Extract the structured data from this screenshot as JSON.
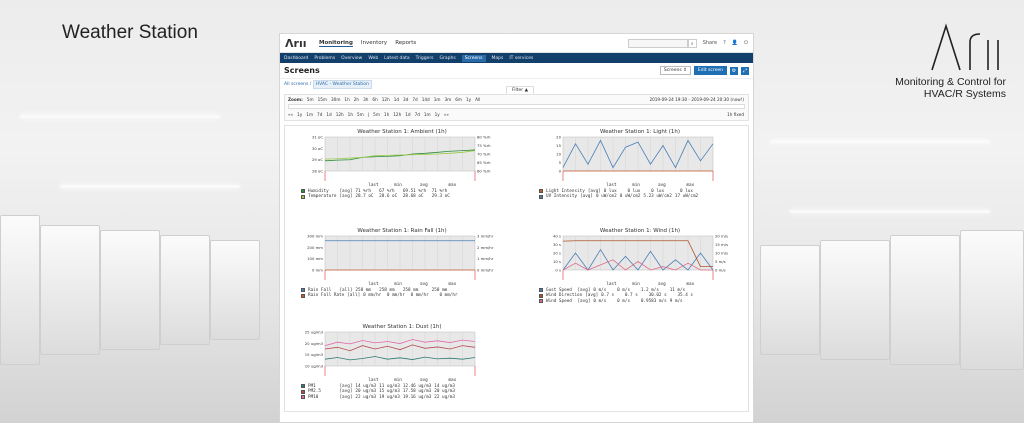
{
  "slide": {
    "title": "Weather Station",
    "brand_tagline_1": "Monitoring & Control for",
    "brand_tagline_2": "HVAC/R Systems"
  },
  "topnav": [
    "Monitoring",
    "Inventory",
    "Reports"
  ],
  "topright": {
    "share": "Share",
    "help": "?",
    "user": "👤",
    "power": "⏻"
  },
  "subnav": [
    "Dashboard",
    "Problems",
    "Overview",
    "Web",
    "Latest data",
    "Triggers",
    "Graphs",
    "Screens",
    "Maps",
    "IT services"
  ],
  "subnav_active": "Screens",
  "page": {
    "title": "Screens",
    "select": "Screens",
    "edit": "Edit screen"
  },
  "crumbs": {
    "root": "All screens",
    "current": "HVAC - Weather Station"
  },
  "filter": {
    "label": "Filter ▲",
    "zoom": [
      "Zoom:",
      "5m",
      "15m",
      "30m",
      "1h",
      "2h",
      "3h",
      "6h",
      "12h",
      "1d",
      "3d",
      "7d",
      "14d",
      "1m",
      "3m",
      "6m",
      "1y",
      "All"
    ],
    "range": "2019-09-24 19:30 - 2019-09-24 20:30 (now!)",
    "nav": [
      "««",
      "1y",
      "1m",
      "7d",
      "1d",
      "12h",
      "1h",
      "5m",
      "|",
      "5m",
      "1h",
      "12h",
      "1d",
      "7d",
      "1m",
      "1y",
      "»»"
    ],
    "fixed": "1h fixed"
  },
  "graphs": [
    {
      "title": "Weather Station 1: Ambient (1h)",
      "yl": [
        "31 oC",
        "30 oC",
        "29 oC",
        "28 oC"
      ],
      "yr": [
        "80 %rh",
        "75 %rh",
        "70 %rh",
        "65 %rh",
        "60 %rh"
      ],
      "series": [
        {
          "name": "Humidity",
          "color": "#2d8c3a",
          "fn": "[avg]",
          "last": "71 %rh",
          "min": "67 %rh",
          "avg": "69.51 %rh",
          "max": "71 %rh",
          "values": [
            0.3,
            0.32,
            0.33,
            0.4,
            0.42,
            0.43,
            0.45,
            0.5,
            0.52,
            0.55,
            0.58,
            0.6,
            0.62
          ]
        },
        {
          "name": "Temperature",
          "color": "#9aca48",
          "fn": "[avg]",
          "last": "28.7 oC",
          "min": "28.6 oC",
          "avg": "28.68 oC",
          "max": "29.3 oC",
          "values": [
            0.35,
            0.36,
            0.38,
            0.4,
            0.45,
            0.46,
            0.47,
            0.48,
            0.49,
            0.5,
            0.52,
            0.55,
            0.6
          ]
        }
      ]
    },
    {
      "title": "Weather Station 1: Light (1h)",
      "yl": [
        "20",
        "15",
        "10",
        "5",
        "0"
      ],
      "yr": [],
      "series": [
        {
          "name": "Light Intensity",
          "color": "#c85a2c",
          "fn": "[avg]",
          "last": "0 lux",
          "min": "0 lux",
          "avg": "0 lux",
          "max": "0 lux",
          "values": [
            0,
            0,
            0,
            0,
            0,
            0,
            0,
            0,
            0,
            0,
            0,
            0,
            0
          ]
        },
        {
          "name": "UV Intensity",
          "color": "#4a7fb5",
          "fn": "[avg]",
          "last": "0 uW/cm2",
          "min": "0 uW/cm2",
          "avg": "5.23 uW/cm2",
          "max": "17 uW/cm2",
          "values": [
            0.1,
            0.8,
            0.2,
            0.9,
            0.1,
            0.7,
            0.85,
            0.2,
            0.75,
            0.1,
            0.9,
            0.3,
            0.8
          ]
        }
      ]
    },
    {
      "title": "Weather Station 1: Rain Fall (1h)",
      "yl": [
        "300 mm",
        "200 mm",
        "100 mm",
        "0 mm"
      ],
      "yr": [
        "3 mm/hr",
        "2 mm/hr",
        "1 mm/hr",
        "0 mm/hr"
      ],
      "series": [
        {
          "name": "Rain Fall",
          "color": "#4a7fb5",
          "fn": "[all]",
          "last": "258 mm",
          "min": "258 mm",
          "avg": "258 mm",
          "max": "258 mm",
          "values": [
            0.86,
            0.86,
            0.86,
            0.86,
            0.86,
            0.86,
            0.86,
            0.86,
            0.86,
            0.86,
            0.86,
            0.86,
            0.86
          ]
        },
        {
          "name": "Rain Fall Rate",
          "color": "#c85a2c",
          "fn": "[all]",
          "last": "0 mm/hr",
          "min": "0 mm/hr",
          "avg": "0 mm/hr",
          "max": "0 mm/hr",
          "values": [
            0,
            0,
            0,
            0,
            0,
            0,
            0,
            0,
            0,
            0,
            0,
            0,
            0
          ]
        }
      ]
    },
    {
      "title": "Weather Station 1: Wind (1h)",
      "yl": [
        "40 s",
        "30 s",
        "20 s",
        "10 s",
        "0 s"
      ],
      "yr": [
        "20 m/s",
        "15 m/s",
        "10 m/s",
        "5 m/s",
        "0 m/s"
      ],
      "series": [
        {
          "name": "Gust Speed",
          "color": "#4a7fb5",
          "fn": "[avg]",
          "last": "0 m/s",
          "min": "0 m/s",
          "avg": "1.2 m/s",
          "max": "11 m/s",
          "values": [
            0,
            0.5,
            0,
            0.6,
            0,
            0.4,
            0,
            0.55,
            0,
            0.3,
            0,
            0.5,
            0
          ]
        },
        {
          "name": "Wind Direction",
          "color": "#b0532b",
          "fn": "[avg]",
          "last": "0.7 s",
          "min": "0.7 s",
          "avg": "30.02 s",
          "max": "35.4 s",
          "values": [
            0.85,
            0.86,
            0.86,
            0.86,
            0.86,
            0.86,
            0.86,
            0.86,
            0.86,
            0.86,
            0.86,
            0.1,
            0.1
          ]
        },
        {
          "name": "Wind Speed",
          "color": "#e06a8a",
          "fn": "[avg]",
          "last": "0 m/s",
          "min": "0 m/s",
          "avg": "0.9583 m/s",
          "max": "9 m/s",
          "values": [
            0,
            0.2,
            0,
            0.15,
            0.3,
            0,
            0.25,
            0,
            0.1,
            0,
            0.2,
            0,
            0
          ]
        }
      ]
    },
    {
      "title": "Weather Station 1: Dust (1h)",
      "yl": [
        "25 ug/m3",
        "20 ug/m3",
        "15 ug/m3",
        "10 ug/m3"
      ],
      "yr": [],
      "series": [
        {
          "name": "PM1",
          "color": "#2d7a72",
          "fn": "[avg]",
          "last": "14 ug/m3",
          "min": "11 ug/m3",
          "avg": "12.46 ug/m3",
          "max": "14 ug/m3",
          "values": [
            0.2,
            0.25,
            0.18,
            0.22,
            0.28,
            0.2,
            0.24,
            0.19,
            0.26,
            0.21,
            0.23,
            0.2,
            0.25
          ]
        },
        {
          "name": "PM2.5",
          "color": "#b34a52",
          "fn": "[avg]",
          "last": "20 ug/m3",
          "min": "15 ug/m3",
          "avg": "17.58 ug/m3",
          "max": "20 ug/m3",
          "values": [
            0.5,
            0.55,
            0.45,
            0.6,
            0.5,
            0.58,
            0.48,
            0.62,
            0.52,
            0.56,
            0.5,
            0.6,
            0.55
          ]
        },
        {
          "name": "PM10",
          "color": "#e06aa8",
          "fn": "[avg]",
          "last": "22 ug/m3",
          "min": "19 ug/m3",
          "avg": "19.16 ug/m3",
          "max": "22 ug/m3",
          "values": [
            0.6,
            0.7,
            0.65,
            0.75,
            0.68,
            0.72,
            0.66,
            0.78,
            0.7,
            0.74,
            0.69,
            0.76,
            0.72
          ]
        }
      ]
    }
  ]
}
